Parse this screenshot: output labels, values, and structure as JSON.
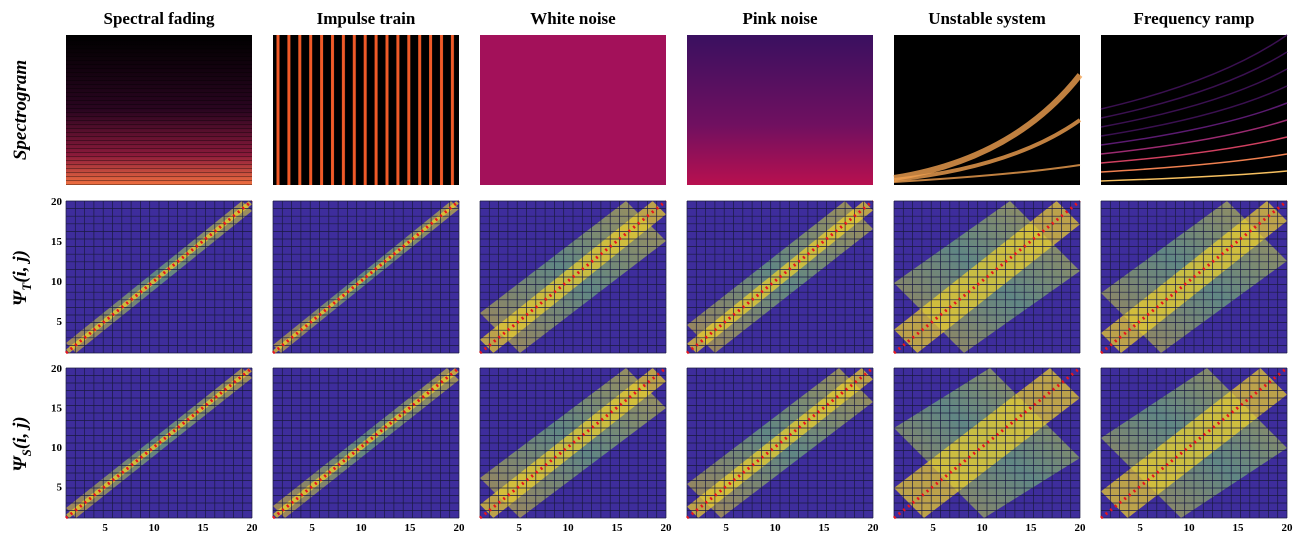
{
  "columns": [
    "Spectral fading",
    "Impulse train",
    "White noise",
    "Pink noise",
    "Unstable system",
    "Frequency ramp"
  ],
  "rows": {
    "spectrogram": "Spectrogram",
    "psi_t": {
      "symbol": "Ψ",
      "sub": "T",
      "args": "(i, j)"
    },
    "psi_s": {
      "symbol": "Ψ",
      "sub": "S",
      "args": "(i, j)"
    }
  },
  "axes": {
    "xlim": [
      1,
      20
    ],
    "ylim": [
      1,
      20
    ],
    "xticks": [
      5,
      10,
      15,
      20
    ],
    "yticks": [
      5,
      10,
      15,
      20
    ]
  }
}
